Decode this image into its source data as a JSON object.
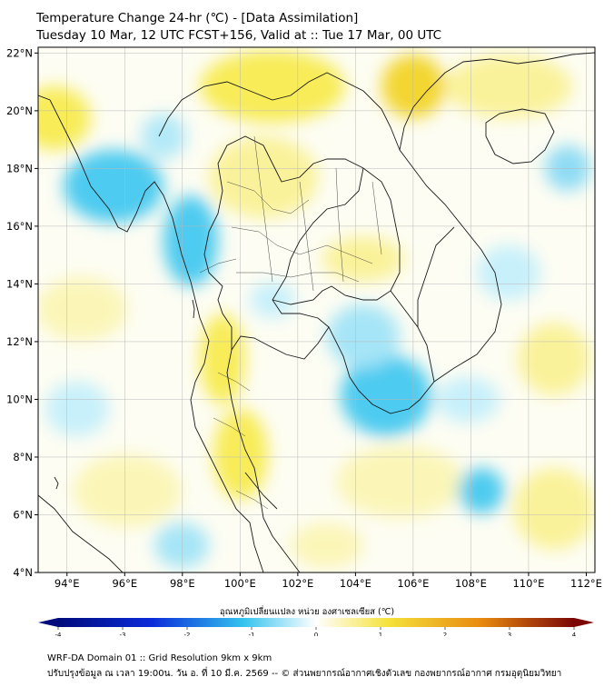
{
  "title_line1": "Temperature Change 24-hr (℃) - [Data Assimilation]",
  "title_line2": "Tuesday 10 Mar, 12 UTC FCST+156, Valid at :: Tue 17 Mar, 00 UTC",
  "map": {
    "lon_range": [
      93,
      112.3
    ],
    "lat_range": [
      4,
      22.2
    ],
    "lon_ticks": [
      "94°E",
      "96°E",
      "98°E",
      "100°E",
      "102°E",
      "104°E",
      "106°E",
      "108°E",
      "110°E",
      "112°E"
    ],
    "lat_ticks": [
      "22°N",
      "20°N",
      "18°N",
      "16°N",
      "14°N",
      "12°N",
      "10°N",
      "8°N",
      "6°N",
      "4°N"
    ]
  },
  "colorbar": {
    "label": "อุณหภูมิเปลี่ยนแปลง หน่วย องศาเซลเซียส (℃)",
    "ticks": [
      "-4",
      "-3",
      "-2",
      "-1",
      "0",
      "1",
      "2",
      "3",
      "4"
    ],
    "range": [
      -4,
      4
    ],
    "colors": {
      "min": "#000a7a",
      "cold": "#0a2bd9",
      "cool": "#35c4ee",
      "neutral": "#ffffff",
      "warm": "#f5e23a",
      "hot": "#e88a10",
      "max": "#7a0606"
    }
  },
  "footer_line1": "WRF-DA Domain 01 :: Grid Resolution 9km x 9km",
  "footer_line2": "ปรับปรุงข้อมูล ณ เวลา 19:00น. วัน อ. ที่ 10 มี.ค. 2569 -- © ส่วนพยากรณ์อากาศเชิงตัวเลข กองพยากรณ์อากาศ กรมอุตุนิยมวิทยา"
}
